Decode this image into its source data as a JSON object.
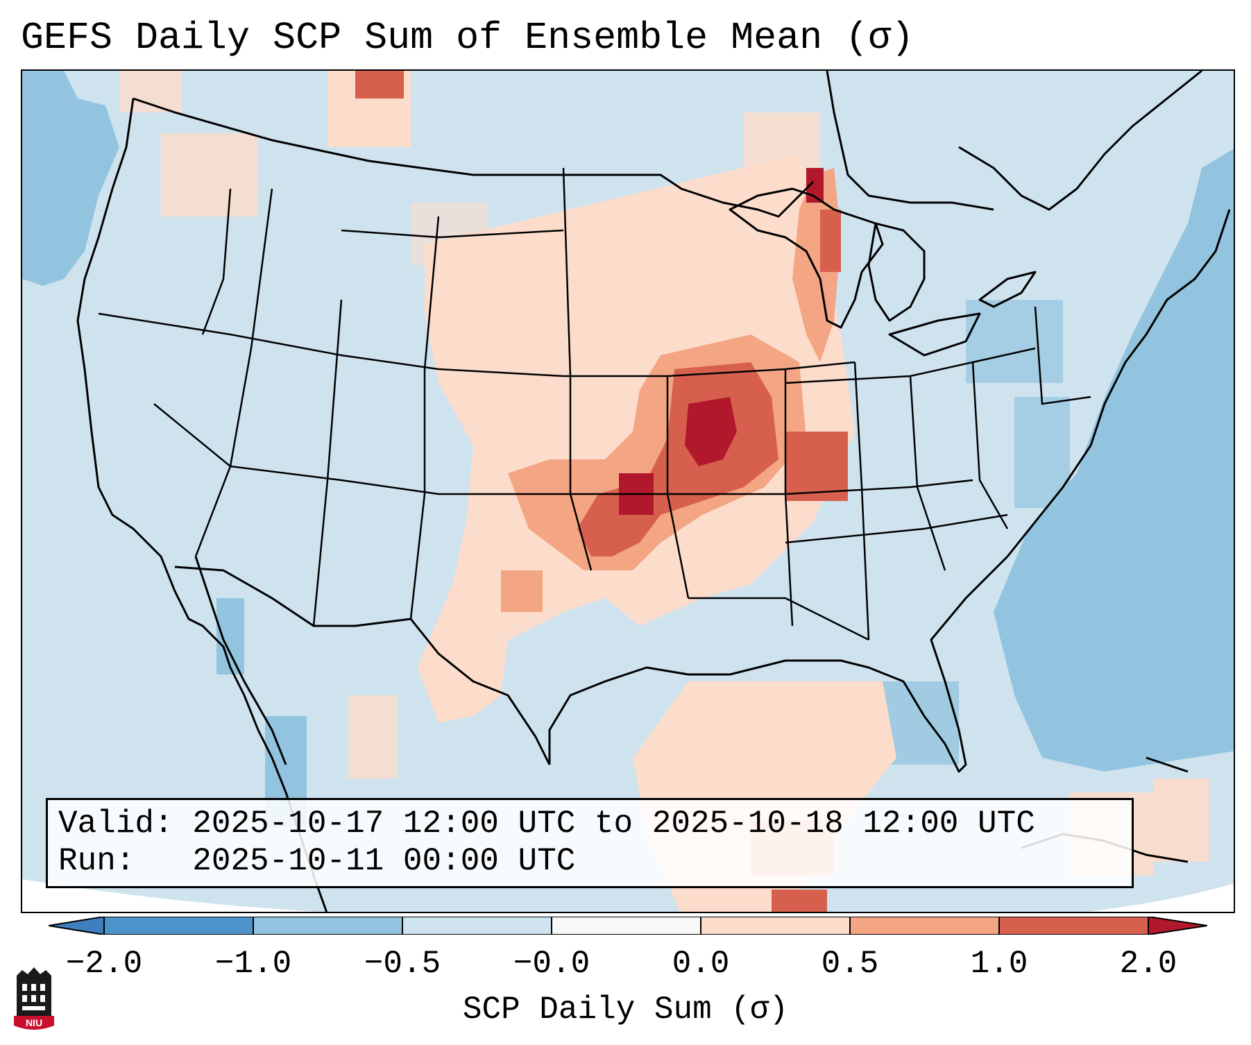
{
  "title": "GEFS Daily SCP Sum of Ensemble Mean (σ)",
  "info": {
    "valid_line": "Valid: 2025-10-17 12:00 UTC to 2025-10-18 12:00 UTC",
    "run_line": "Run:   2025-10-11 00:00 UTC"
  },
  "colorbar": {
    "label": "SCP Daily Sum (σ)",
    "ticks": [
      "−2.0",
      "−1.0",
      "−0.5",
      "−0.0",
      "0.0",
      "0.5",
      "1.0",
      "2.0"
    ],
    "colors": {
      "below_min": "#3f7fbf",
      "bin_-2_-1": "#4d93c9",
      "bin_-1_-0.5": "#93c4df",
      "bin_-0.5_-0": "#d0e4ef",
      "bin_-0_0": "#f8f8f8",
      "bin_0_0.5": "#fcdccb",
      "bin_0.5_1": "#f3a584",
      "bin_1_2": "#d6604d",
      "above_max": "#b2182b"
    }
  },
  "logo": {
    "text": "NIU"
  },
  "map": {
    "region": "Contiguous United States",
    "field": "SCP daily sum anomaly",
    "max_anomaly_regions": [
      "Missouri",
      "Iowa",
      "Kansas",
      "Oklahoma",
      "Illinois"
    ]
  }
}
